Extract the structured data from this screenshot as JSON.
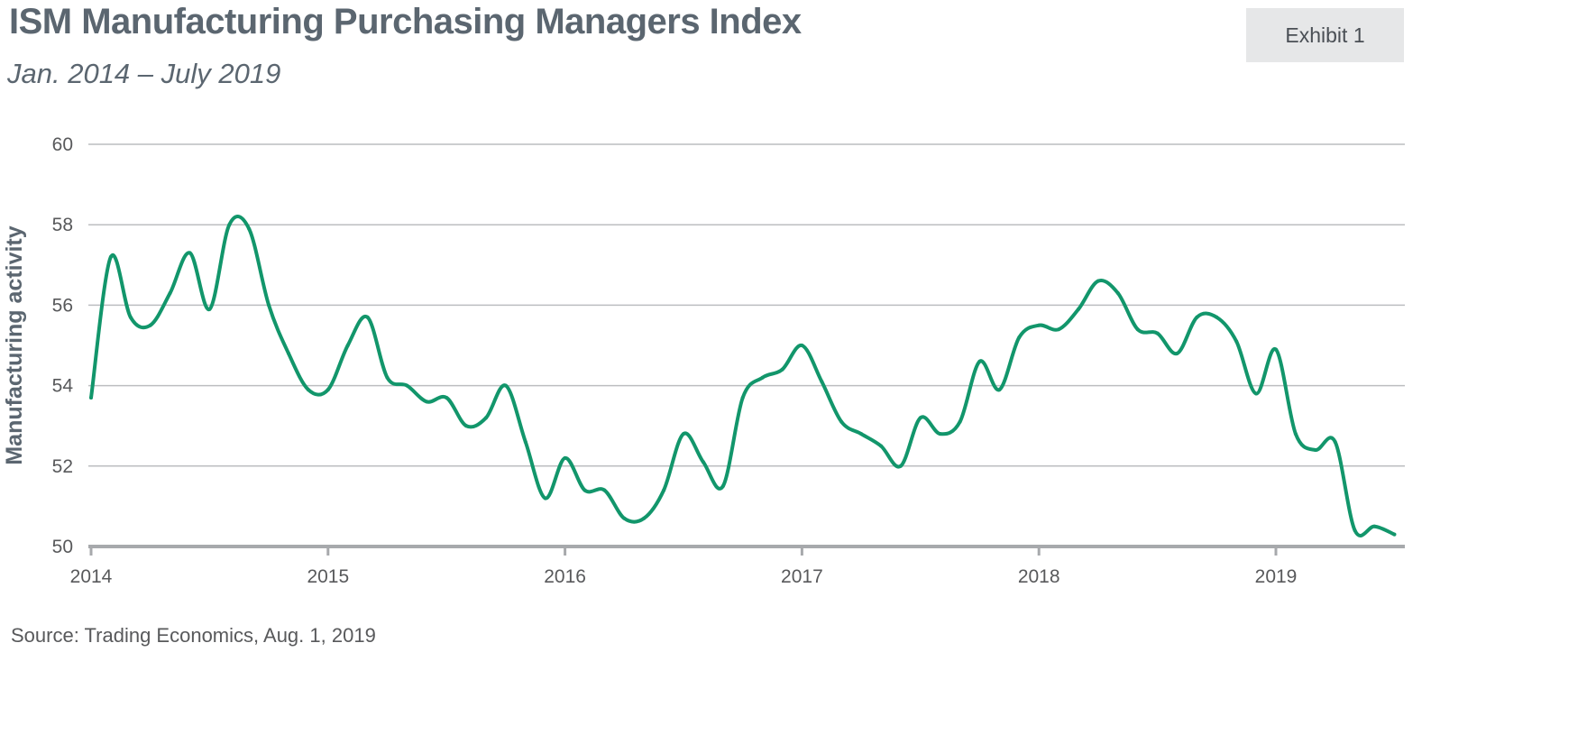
{
  "header": {
    "title": "ISM Manufacturing Purchasing Managers Index",
    "subtitle": "Jan. 2014 – July 2019",
    "badge": "Exhibit 1"
  },
  "footer": {
    "source": "Source: Trading Economics, Aug. 1, 2019"
  },
  "colors": {
    "line": "#12966b",
    "grid": "#bcbec0",
    "axis": "#a7a9ac",
    "text": "#58595b"
  },
  "chart_data": {
    "type": "line",
    "title": "ISM Manufacturing Purchasing Managers Index",
    "subtitle": "Jan. 2014 – July 2019",
    "xlabel": "",
    "ylabel": "Manufacturing activity",
    "ylim": [
      50,
      60
    ],
    "yticks": [
      "50",
      "52",
      "54",
      "56",
      "58",
      "60"
    ],
    "xticks": [
      "2014",
      "2015",
      "2016",
      "2017",
      "2018",
      "2019"
    ],
    "grid": true,
    "legend": "none",
    "series": [
      {
        "x": [
          "2014-01",
          "2014-02",
          "2014-03",
          "2014-04",
          "2014-05",
          "2014-06",
          "2014-07",
          "2014-08",
          "2014-09",
          "2014-10",
          "2014-11",
          "2014-12",
          "2015-01",
          "2015-02",
          "2015-03",
          "2015-04",
          "2015-05",
          "2015-06",
          "2015-07",
          "2015-08",
          "2015-09",
          "2015-10",
          "2015-11",
          "2015-12",
          "2016-01",
          "2016-02",
          "2016-03",
          "2016-04",
          "2016-05",
          "2016-06",
          "2016-07",
          "2016-08",
          "2016-09",
          "2016-10",
          "2016-11",
          "2016-12",
          "2017-01",
          "2017-02",
          "2017-03",
          "2017-04",
          "2017-05",
          "2017-06",
          "2017-07",
          "2017-08",
          "2017-09",
          "2017-10",
          "2017-11",
          "2017-12",
          "2018-01",
          "2018-02",
          "2018-03",
          "2018-04",
          "2018-05",
          "2018-06",
          "2018-07",
          "2018-08",
          "2018-09",
          "2018-10",
          "2018-11",
          "2018-12",
          "2019-01",
          "2019-02",
          "2019-03",
          "2019-04",
          "2019-05",
          "2019-06",
          "2019-07"
        ],
        "values": [
          53.7,
          57.2,
          55.7,
          55.5,
          56.3,
          57.3,
          55.9,
          58.0,
          57.9,
          56.0,
          54.8,
          53.9,
          53.9,
          55.0,
          55.7,
          54.2,
          54.0,
          53.6,
          53.7,
          53.0,
          53.2,
          54.0,
          52.6,
          51.2,
          52.2,
          51.4,
          51.4,
          50.7,
          50.7,
          51.4,
          52.8,
          52.1,
          51.5,
          53.7,
          54.2,
          54.4,
          55.0,
          54.1,
          53.1,
          52.8,
          52.5,
          52.0,
          53.2,
          52.8,
          53.1,
          54.6,
          53.9,
          55.2,
          55.5,
          55.4,
          55.9,
          56.6,
          56.3,
          55.4,
          55.3,
          54.8,
          55.7,
          55.7,
          55.1,
          53.8,
          54.9,
          52.8,
          52.4,
          52.6,
          50.4,
          50.5,
          50.3
        ]
      }
    ]
  }
}
